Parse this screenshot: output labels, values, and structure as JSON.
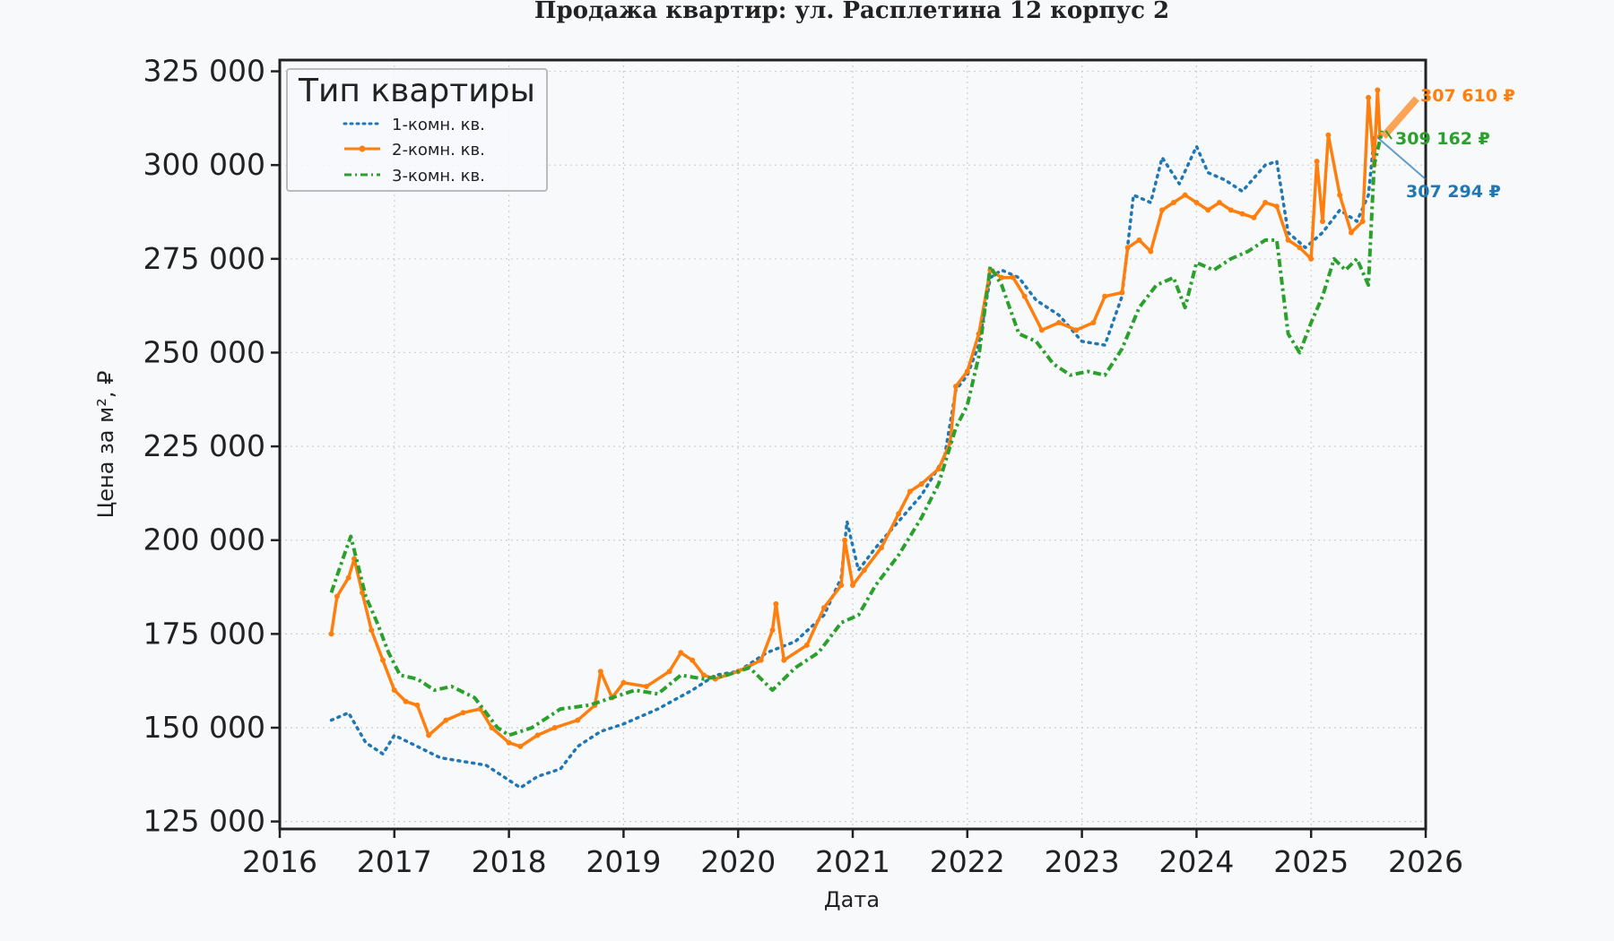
{
  "chart_data": {
    "type": "line",
    "title": "Продажа квартир: ул. Расплетина 12 корпус 2",
    "xlabel": "Дата",
    "ylabel": "Цена за м², ₽",
    "xlim": [
      2016,
      2026
    ],
    "ylim": [
      123000,
      328000
    ],
    "x_ticks": [
      "2016",
      "2017",
      "2018",
      "2019",
      "2020",
      "2021",
      "2022",
      "2023",
      "2024",
      "2025",
      "2026"
    ],
    "y_ticks": [
      "125 000",
      "150 000",
      "175 000",
      "200 000",
      "225 000",
      "250 000",
      "275 000",
      "300 000",
      "325 000"
    ],
    "grid": true,
    "legend": {
      "title": "Тип квартиры",
      "placement": "top-left",
      "entries": [
        "1-комн. кв.",
        "2-комн. кв.",
        "3-комн. кв."
      ]
    },
    "colors": {
      "one": "#1f77b4",
      "two": "#ff7f0e",
      "three": "#2ca02c"
    },
    "series": [
      {
        "name": "1-комн. кв.",
        "style": "dotted",
        "color": "#1f77b4",
        "points": [
          [
            2016.45,
            152000
          ],
          [
            2016.6,
            154000
          ],
          [
            2016.75,
            146000
          ],
          [
            2016.9,
            143000
          ],
          [
            2017.0,
            148000
          ],
          [
            2017.2,
            145000
          ],
          [
            2017.4,
            142000
          ],
          [
            2017.6,
            141000
          ],
          [
            2017.8,
            140000
          ],
          [
            2018.0,
            136000
          ],
          [
            2018.1,
            134000
          ],
          [
            2018.25,
            137000
          ],
          [
            2018.45,
            139000
          ],
          [
            2018.6,
            145000
          ],
          [
            2018.8,
            149000
          ],
          [
            2019.0,
            151000
          ],
          [
            2019.3,
            155000
          ],
          [
            2019.6,
            160000
          ],
          [
            2019.8,
            164000
          ],
          [
            2020.0,
            165000
          ],
          [
            2020.25,
            170000
          ],
          [
            2020.5,
            173000
          ],
          [
            2020.75,
            180000
          ],
          [
            2020.9,
            190000
          ],
          [
            2020.95,
            205000
          ],
          [
            2021.05,
            192000
          ],
          [
            2021.2,
            198000
          ],
          [
            2021.4,
            205000
          ],
          [
            2021.6,
            212000
          ],
          [
            2021.8,
            222000
          ],
          [
            2021.9,
            240000
          ],
          [
            2022.0,
            244000
          ],
          [
            2022.1,
            252000
          ],
          [
            2022.2,
            270000
          ],
          [
            2022.3,
            272000
          ],
          [
            2022.45,
            270000
          ],
          [
            2022.6,
            264000
          ],
          [
            2022.8,
            260000
          ],
          [
            2023.0,
            253000
          ],
          [
            2023.2,
            252000
          ],
          [
            2023.35,
            265000
          ],
          [
            2023.45,
            292000
          ],
          [
            2023.6,
            290000
          ],
          [
            2023.7,
            302000
          ],
          [
            2023.85,
            295000
          ],
          [
            2024.0,
            305000
          ],
          [
            2024.1,
            298000
          ],
          [
            2024.25,
            296000
          ],
          [
            2024.4,
            293000
          ],
          [
            2024.6,
            300000
          ],
          [
            2024.7,
            301000
          ],
          [
            2024.8,
            282000
          ],
          [
            2024.95,
            278000
          ],
          [
            2025.1,
            282000
          ],
          [
            2025.25,
            288000
          ],
          [
            2025.4,
            285000
          ],
          [
            2025.5,
            292000
          ],
          [
            2025.55,
            307294
          ]
        ]
      },
      {
        "name": "2-комн. кв.",
        "style": "solid",
        "color": "#ff7f0e",
        "points": [
          [
            2016.45,
            175000
          ],
          [
            2016.5,
            185000
          ],
          [
            2016.6,
            190000
          ],
          [
            2016.65,
            195000
          ],
          [
            2016.72,
            186000
          ],
          [
            2016.8,
            176000
          ],
          [
            2016.9,
            168000
          ],
          [
            2017.0,
            160000
          ],
          [
            2017.1,
            157000
          ],
          [
            2017.2,
            156000
          ],
          [
            2017.3,
            148000
          ],
          [
            2017.45,
            152000
          ],
          [
            2017.6,
            154000
          ],
          [
            2017.75,
            155000
          ],
          [
            2017.85,
            150000
          ],
          [
            2018.0,
            146000
          ],
          [
            2018.1,
            145000
          ],
          [
            2018.25,
            148000
          ],
          [
            2018.4,
            150000
          ],
          [
            2018.6,
            152000
          ],
          [
            2018.75,
            156000
          ],
          [
            2018.8,
            165000
          ],
          [
            2018.9,
            158000
          ],
          [
            2019.0,
            162000
          ],
          [
            2019.2,
            161000
          ],
          [
            2019.4,
            165000
          ],
          [
            2019.5,
            170000
          ],
          [
            2019.6,
            168000
          ],
          [
            2019.7,
            164000
          ],
          [
            2019.8,
            163000
          ],
          [
            2020.0,
            165000
          ],
          [
            2020.2,
            168000
          ],
          [
            2020.3,
            176000
          ],
          [
            2020.33,
            183000
          ],
          [
            2020.4,
            168000
          ],
          [
            2020.6,
            172000
          ],
          [
            2020.75,
            182000
          ],
          [
            2020.9,
            188000
          ],
          [
            2020.93,
            200000
          ],
          [
            2021.0,
            188000
          ],
          [
            2021.1,
            192000
          ],
          [
            2021.25,
            198000
          ],
          [
            2021.4,
            207000
          ],
          [
            2021.5,
            213000
          ],
          [
            2021.6,
            215000
          ],
          [
            2021.75,
            219000
          ],
          [
            2021.85,
            226000
          ],
          [
            2021.9,
            241000
          ],
          [
            2022.0,
            245000
          ],
          [
            2022.1,
            255000
          ],
          [
            2022.2,
            272000
          ],
          [
            2022.3,
            270000
          ],
          [
            2022.4,
            270000
          ],
          [
            2022.5,
            265000
          ],
          [
            2022.65,
            256000
          ],
          [
            2022.8,
            258000
          ],
          [
            2022.95,
            256000
          ],
          [
            2023.1,
            258000
          ],
          [
            2023.2,
            265000
          ],
          [
            2023.35,
            266000
          ],
          [
            2023.4,
            278000
          ],
          [
            2023.5,
            280000
          ],
          [
            2023.6,
            277000
          ],
          [
            2023.7,
            288000
          ],
          [
            2023.8,
            290000
          ],
          [
            2023.9,
            292000
          ],
          [
            2024.0,
            290000
          ],
          [
            2024.1,
            288000
          ],
          [
            2024.2,
            290000
          ],
          [
            2024.3,
            288000
          ],
          [
            2024.4,
            287000
          ],
          [
            2024.5,
            286000
          ],
          [
            2024.6,
            290000
          ],
          [
            2024.7,
            289000
          ],
          [
            2024.8,
            280000
          ],
          [
            2024.9,
            278000
          ],
          [
            2025.0,
            275000
          ],
          [
            2025.05,
            301000
          ],
          [
            2025.1,
            285000
          ],
          [
            2025.15,
            308000
          ],
          [
            2025.25,
            292000
          ],
          [
            2025.35,
            282000
          ],
          [
            2025.45,
            285000
          ],
          [
            2025.5,
            318000
          ],
          [
            2025.55,
            300000
          ],
          [
            2025.58,
            320000
          ],
          [
            2025.6,
            307610
          ]
        ]
      },
      {
        "name": "3-комн. кв.",
        "style": "dashdot",
        "color": "#2ca02c",
        "points": [
          [
            2016.45,
            186000
          ],
          [
            2016.55,
            195000
          ],
          [
            2016.62,
            201000
          ],
          [
            2016.75,
            185000
          ],
          [
            2016.85,
            178000
          ],
          [
            2016.95,
            170000
          ],
          [
            2017.05,
            164000
          ],
          [
            2017.2,
            163000
          ],
          [
            2017.35,
            160000
          ],
          [
            2017.5,
            161000
          ],
          [
            2017.7,
            158000
          ],
          [
            2017.9,
            150000
          ],
          [
            2018.0,
            148000
          ],
          [
            2018.2,
            150000
          ],
          [
            2018.45,
            155000
          ],
          [
            2018.7,
            156000
          ],
          [
            2018.9,
            158000
          ],
          [
            2019.1,
            160000
          ],
          [
            2019.3,
            159000
          ],
          [
            2019.5,
            164000
          ],
          [
            2019.7,
            163000
          ],
          [
            2019.9,
            164000
          ],
          [
            2020.1,
            166000
          ],
          [
            2020.3,
            160000
          ],
          [
            2020.5,
            166000
          ],
          [
            2020.7,
            170000
          ],
          [
            2020.9,
            178000
          ],
          [
            2021.05,
            180000
          ],
          [
            2021.2,
            188000
          ],
          [
            2021.4,
            196000
          ],
          [
            2021.6,
            206000
          ],
          [
            2021.75,
            215000
          ],
          [
            2021.9,
            230000
          ],
          [
            2022.0,
            236000
          ],
          [
            2022.1,
            249000
          ],
          [
            2022.2,
            273000
          ],
          [
            2022.3,
            268000
          ],
          [
            2022.45,
            255000
          ],
          [
            2022.6,
            253000
          ],
          [
            2022.75,
            247000
          ],
          [
            2022.9,
            244000
          ],
          [
            2023.05,
            245000
          ],
          [
            2023.2,
            244000
          ],
          [
            2023.35,
            251000
          ],
          [
            2023.5,
            262000
          ],
          [
            2023.65,
            268000
          ],
          [
            2023.8,
            270000
          ],
          [
            2023.9,
            262000
          ],
          [
            2024.0,
            274000
          ],
          [
            2024.15,
            272000
          ],
          [
            2024.3,
            275000
          ],
          [
            2024.45,
            277000
          ],
          [
            2024.6,
            280000
          ],
          [
            2024.7,
            280000
          ],
          [
            2024.8,
            255000
          ],
          [
            2024.9,
            250000
          ],
          [
            2025.0,
            258000
          ],
          [
            2025.1,
            265000
          ],
          [
            2025.2,
            275000
          ],
          [
            2025.3,
            272000
          ],
          [
            2025.4,
            275000
          ],
          [
            2025.5,
            268000
          ],
          [
            2025.55,
            300000
          ],
          [
            2025.62,
            309162
          ]
        ]
      }
    ],
    "annotations": [
      {
        "text": "307 610 ₽",
        "series": "2-комн. кв.",
        "value": 307610
      },
      {
        "text": "309 162 ₽",
        "series": "3-комн. кв.",
        "value": 309162
      },
      {
        "text": "307 294 ₽",
        "series": "1-комн. кв.",
        "value": 307294
      }
    ]
  }
}
